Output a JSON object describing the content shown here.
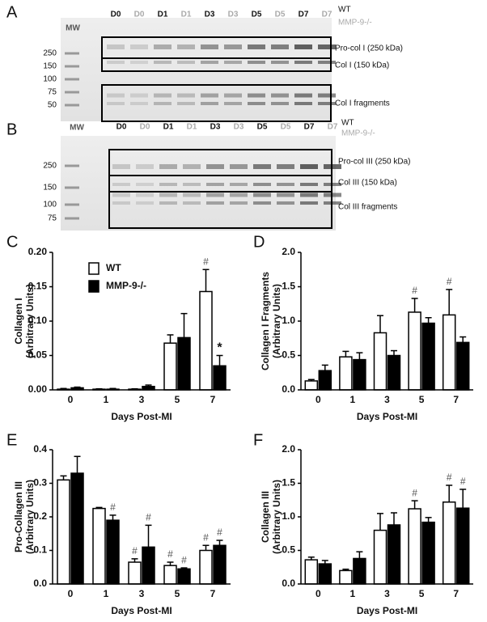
{
  "blots": [
    {
      "letter": "A",
      "mw": "MW",
      "lanes": [
        "D0",
        "D0",
        "D1",
        "D1",
        "D3",
        "D3",
        "D5",
        "D5",
        "D7",
        "D7"
      ],
      "genotypes": [
        "WT",
        "MMP-9-/-"
      ],
      "markers": [
        "250",
        "150",
        "100",
        "75",
        "50"
      ],
      "bands": [
        "Pro-col I (250 kDa)",
        "Col I (150 kDa)",
        "Col I fragments"
      ]
    },
    {
      "letter": "B",
      "mw": "MW",
      "lanes": [
        "D0",
        "D0",
        "D1",
        "D1",
        "D3",
        "D3",
        "D5",
        "D5",
        "D7",
        "D7"
      ],
      "genotypes": [
        "WT",
        "MMP-9-/-"
      ],
      "markers": [
        "250",
        "150",
        "100",
        "75"
      ],
      "bands": [
        "Pro-col III (250 kDa)",
        "Col III (150 kDa)",
        "Col III fragments"
      ]
    }
  ],
  "chart_data": [
    {
      "type": "bar",
      "letter": "C",
      "ylabel": [
        "Collagen I",
        "(Arbitrary Units)"
      ],
      "xlabel": "Days Post-MI",
      "categories": [
        "0",
        "1",
        "3",
        "5",
        "7"
      ],
      "ylim": [
        0,
        0.2
      ],
      "yticks": [
        {
          "value": 0,
          "label": "0.00"
        },
        0.05,
        {
          "value": 0.1,
          "label": "0.10"
        },
        0.15,
        {
          "value": 0.2,
          "label": "0.20"
        }
      ],
      "legend": true,
      "series": [
        {
          "name": "WT",
          "color": "#ffffff",
          "values": [
            0.001,
            0.001,
            0.001,
            0.068,
            0.143
          ],
          "errors": [
            0.001,
            0.0005,
            0.0005,
            0.012,
            0.032
          ]
        },
        {
          "name": "MMP-9-/-",
          "color": "#000000",
          "values": [
            0.003,
            0.001,
            0.005,
            0.076,
            0.035
          ],
          "errors": [
            0.001,
            0.001,
            0.002,
            0.035,
            0.015
          ]
        }
      ],
      "annotations": [
        {
          "text": "#",
          "category": "7",
          "series": "WT"
        },
        {
          "text": "*",
          "category": "7",
          "series": "MMP-9-/-"
        }
      ]
    },
    {
      "type": "bar",
      "letter": "D",
      "ylabel": [
        "Collagen I Fragments",
        "(Arbitrary Units)"
      ],
      "xlabel": "Days Post-MI",
      "categories": [
        "0",
        "1",
        "3",
        "5",
        "7"
      ],
      "ylim": [
        0,
        2
      ],
      "yticks": [
        {
          "value": 0,
          "label": "0.0"
        },
        0.5,
        {
          "value": 1,
          "label": "1.0"
        },
        1.5,
        {
          "value": 2,
          "label": "2.0"
        }
      ],
      "legend": false,
      "series": [
        {
          "name": "WT",
          "color": "#ffffff",
          "values": [
            0.13,
            0.48,
            0.83,
            1.13,
            1.09
          ],
          "errors": [
            0.02,
            0.08,
            0.25,
            0.2,
            0.37
          ]
        },
        {
          "name": "MMP-9-/-",
          "color": "#000000",
          "values": [
            0.28,
            0.44,
            0.5,
            0.97,
            0.69
          ],
          "errors": [
            0.08,
            0.1,
            0.07,
            0.08,
            0.08
          ]
        }
      ],
      "annotations": [
        {
          "text": "#",
          "category": "5",
          "series": "WT"
        },
        {
          "text": "#",
          "category": "7",
          "series": "WT"
        }
      ]
    },
    {
      "type": "bar",
      "letter": "E",
      "ylabel": [
        "Pro-Collagen III",
        "(Arbitrary Units)"
      ],
      "xlabel": "Days Post-MI",
      "categories": [
        "0",
        "1",
        "3",
        "5",
        "7"
      ],
      "ylim": [
        0,
        0.4
      ],
      "yticks": [
        {
          "value": 0,
          "label": "0.0"
        },
        0.1,
        0.2,
        0.3,
        0.4
      ],
      "legend": false,
      "series": [
        {
          "name": "WT",
          "color": "#ffffff",
          "values": [
            0.31,
            0.225,
            0.065,
            0.055,
            0.1
          ],
          "errors": [
            0.012,
            0.003,
            0.01,
            0.01,
            0.015
          ]
        },
        {
          "name": "MMP-9-/-",
          "color": "#000000",
          "values": [
            0.33,
            0.19,
            0.11,
            0.045,
            0.115
          ],
          "errors": [
            0.05,
            0.015,
            0.065,
            0.003,
            0.015
          ]
        }
      ],
      "annotations": [
        {
          "text": "#",
          "category": "1",
          "series": "MMP-9-/-"
        },
        {
          "text": "#",
          "category": "3",
          "series": "WT"
        },
        {
          "text": "#",
          "category": "3",
          "series": "MMP-9-/-"
        },
        {
          "text": "#",
          "category": "5",
          "series": "WT"
        },
        {
          "text": "#",
          "category": "5",
          "series": "MMP-9-/-"
        },
        {
          "text": "#",
          "category": "7",
          "series": "WT"
        },
        {
          "text": "#",
          "category": "7",
          "series": "MMP-9-/-"
        }
      ]
    },
    {
      "type": "bar",
      "letter": "F",
      "ylabel": [
        "Collagen III",
        "(Arbitrary Units)"
      ],
      "xlabel": "Days Post-MI",
      "categories": [
        "0",
        "1",
        "3",
        "5",
        "7"
      ],
      "ylim": [
        0,
        2
      ],
      "yticks": [
        {
          "value": 0,
          "label": "0.0"
        },
        0.5,
        {
          "value": 1,
          "label": "1.0"
        },
        1.5,
        {
          "value": 2,
          "label": "2.0"
        }
      ],
      "legend": false,
      "series": [
        {
          "name": "WT",
          "color": "#ffffff",
          "values": [
            0.36,
            0.2,
            0.8,
            1.12,
            1.22
          ],
          "errors": [
            0.04,
            0.02,
            0.25,
            0.12,
            0.25
          ]
        },
        {
          "name": "MMP-9-/-",
          "color": "#000000",
          "values": [
            0.3,
            0.38,
            0.88,
            0.92,
            1.13
          ],
          "errors": [
            0.05,
            0.1,
            0.18,
            0.07,
            0.28
          ]
        }
      ],
      "annotations": [
        {
          "text": "#",
          "category": "5",
          "series": "WT"
        },
        {
          "text": "#",
          "category": "7",
          "series": "WT"
        },
        {
          "text": "#",
          "category": "7",
          "series": "MMP-9-/-"
        }
      ]
    }
  ]
}
